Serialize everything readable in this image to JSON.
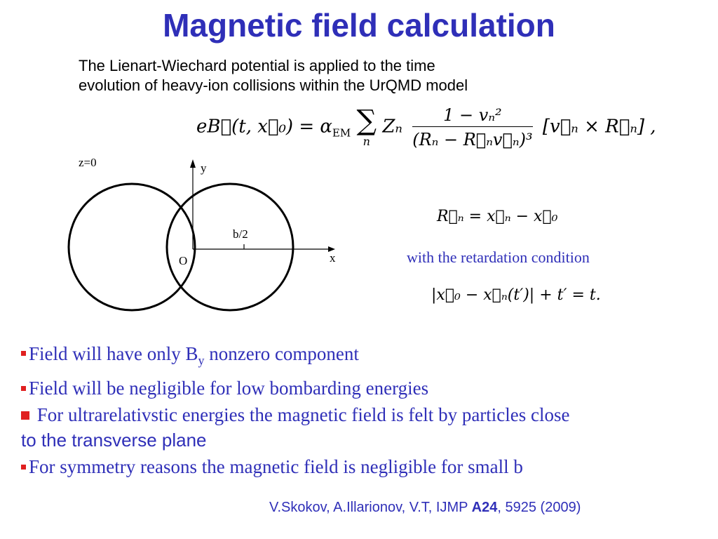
{
  "title": "Magnetic field calculation",
  "intro": {
    "line1": "The Lienart-Wiechard potential is applied  to the time",
    "line2": "evolution of heavy-ion  collisions within the UrQMD model"
  },
  "equations": {
    "main_lhs": "eB⃗(t, x⃗₀) = α",
    "main_em": "EM",
    "sum_index": "n",
    "z_n": "Zₙ",
    "numerator": "1 − vₙ²",
    "denominator": "(Rₙ − R⃗ₙv⃗ₙ)³",
    "bracket": "[v⃗ₙ × R⃗ₙ] ,",
    "rn_def": "R⃗ₙ = x⃗ₙ − x⃗₀",
    "retardation": "|x⃗₀ − x⃗ₙ(t′)| + t′ = t."
  },
  "retardation_label": "with the retardation condition",
  "diagram": {
    "z_label": "z=0",
    "y_label": "y",
    "x_label": "x",
    "origin_label": "O",
    "b_label": "b/2"
  },
  "bullets": {
    "b1_pre": "Field will have only B",
    "b1_sub": "y",
    "b1_post": " nonzero component",
    "b2": "Field will be negligible for low bombarding energies",
    "b3_serif": " For ultrarelativstic energies the magnetic field is felt by particles close",
    "b3_sans": "to the transverse plane",
    "b4": "For symmetry reasons  the magnetic field is negligible for small b"
  },
  "reference": {
    "pre": "V.Skokov, A.Illarionov, V.T, IJMP ",
    "bold": "A24",
    "post": ", 5925 (2009)"
  },
  "colors": {
    "accent": "#2f2fb8",
    "bullet": "#e02020"
  }
}
